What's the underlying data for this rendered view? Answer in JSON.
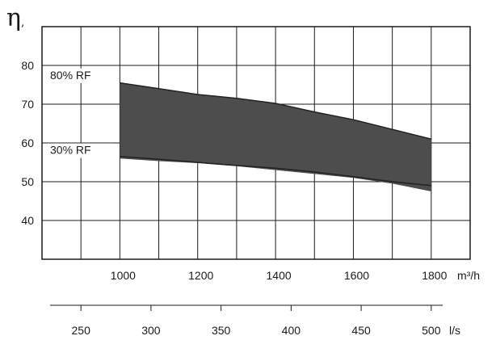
{
  "chart_data": {
    "type": "area",
    "y_symbol": "η",
    "y_symbol_suffix": ",",
    "grid": true,
    "x_range": [
      800,
      1900
    ],
    "y_range": [
      30,
      90
    ],
    "x_ticks": [
      1000,
      1200,
      1400,
      1600,
      1800
    ],
    "y_ticks": [
      40,
      50,
      60,
      70,
      80
    ],
    "x_unit": "m³/h",
    "secondary_x_ticks": [
      250,
      300,
      350,
      400,
      450,
      500
    ],
    "secondary_x_unit": "l/s",
    "secondary_x_conversion": "l/s = m³/h ÷ 3.6",
    "band_color": "#4d4d4d",
    "series": [
      {
        "name": "80% RF",
        "x": [
          1000,
          1100,
          1200,
          1300,
          1400,
          1500,
          1600,
          1700,
          1800
        ],
        "y": [
          75.5,
          74.0,
          72.5,
          71.5,
          70.2,
          68.0,
          66.0,
          63.5,
          61.0
        ]
      },
      {
        "name": "30% RF",
        "x": [
          1000,
          1100,
          1200,
          1300,
          1400,
          1500,
          1600,
          1700,
          1800
        ],
        "y": [
          56.0,
          55.3,
          54.8,
          54.0,
          53.0,
          52.0,
          51.0,
          49.5,
          47.5
        ]
      }
    ],
    "lower_edge": {
      "x": [
        1000,
        1100,
        1200,
        1300,
        1400,
        1500,
        1600,
        1700,
        1800
      ],
      "y": [
        56.5,
        55.8,
        55.0,
        54.2,
        53.5,
        52.5,
        51.3,
        50.0,
        49.0
      ]
    }
  }
}
